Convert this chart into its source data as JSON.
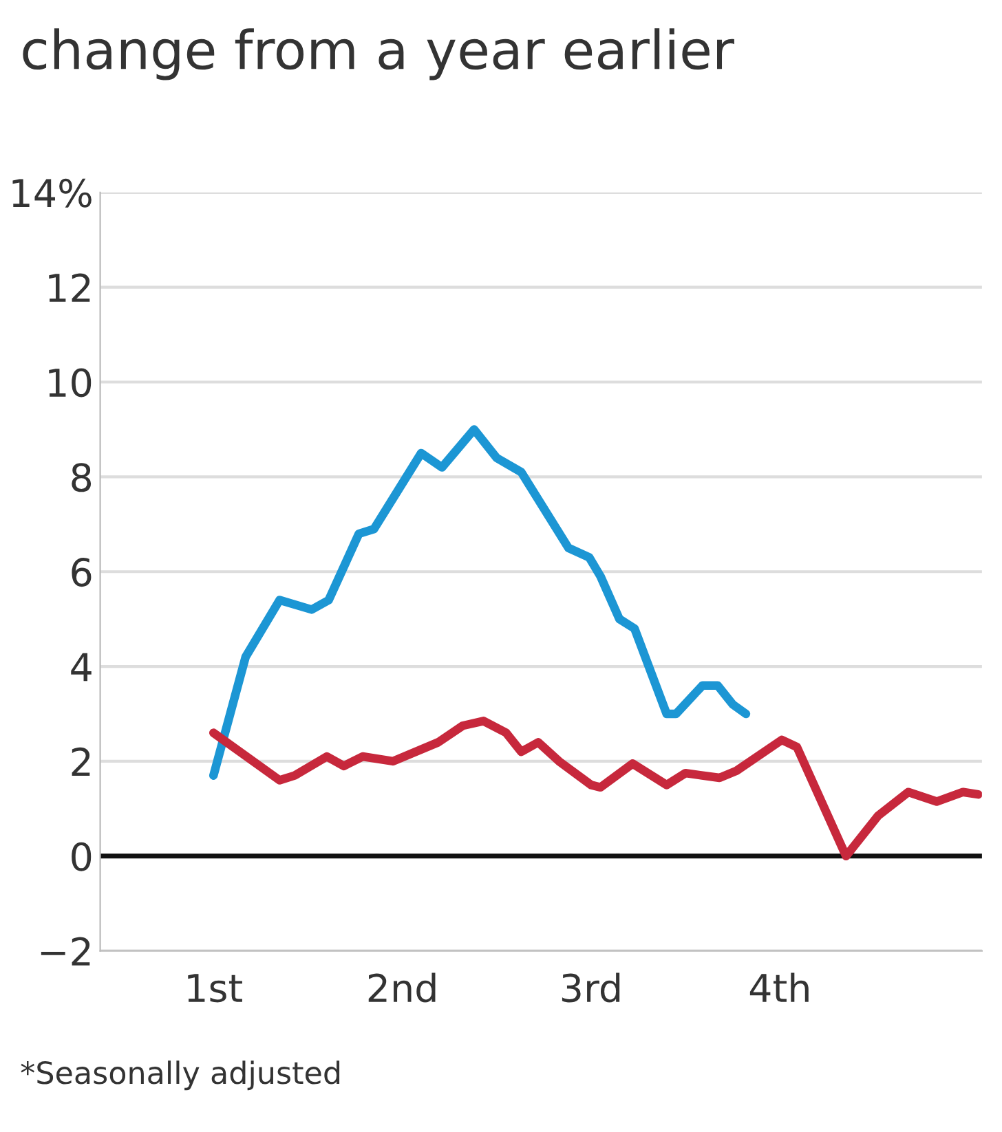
{
  "chart_data": {
    "type": "line",
    "title": "change from a year earlier",
    "series": [
      {
        "color": "#1c96d4",
        "x": [
          1,
          1.17,
          1.35,
          1.52,
          1.61,
          1.77,
          1.85,
          2.1,
          2.21,
          2.38,
          2.5,
          2.63,
          2.88,
          2.99,
          3.05,
          3.15,
          3.23,
          3.4,
          3.45,
          3.59,
          3.67,
          3.75,
          3.82
        ],
        "values": [
          1.7,
          4.2,
          5.4,
          5.2,
          5.4,
          6.8,
          6.9,
          8.5,
          8.2,
          9.0,
          8.4,
          8.1,
          6.5,
          6.3,
          5.9,
          5.0,
          4.8,
          3.0,
          3.0,
          3.6,
          3.6,
          3.2,
          3.0
        ]
      },
      {
        "color": "#c7283c",
        "x": [
          1,
          1.35,
          1.43,
          1.6,
          1.69,
          1.79,
          1.95,
          2.19,
          2.32,
          2.43,
          2.55,
          2.63,
          2.72,
          2.83,
          3,
          3.05,
          3.22,
          3.4,
          3.5,
          3.68,
          3.77,
          4.01,
          4.09,
          4.35,
          4.52,
          4.68,
          4.83,
          4.97,
          5.05
        ],
        "values": [
          2.6,
          1.6,
          1.7,
          2.1,
          1.9,
          2.1,
          2.0,
          2.4,
          2.75,
          2.85,
          2.6,
          2.2,
          2.4,
          2.0,
          1.5,
          1.45,
          1.95,
          1.5,
          1.75,
          1.65,
          1.8,
          2.45,
          2.3,
          0,
          0.85,
          1.35,
          1.15,
          1.35,
          1.3
        ]
      }
    ],
    "xlim": [
      0.4,
      5.07
    ],
    "xticks": [
      {
        "value": 1,
        "label": "1st"
      },
      {
        "value": 2,
        "label": "2nd"
      },
      {
        "value": 3,
        "label": "3rd"
      },
      {
        "value": 4,
        "label": "4th"
      }
    ],
    "ylim": [
      -2,
      14
    ],
    "yticks": [
      {
        "value": 14,
        "label": "14%"
      },
      12,
      10,
      8,
      6,
      4,
      2,
      0,
      {
        "value": -2,
        "label": "−2"
      }
    ],
    "grid": "y",
    "marker": "none",
    "line_style": "solid",
    "ref_lines": [
      {
        "axis": "y",
        "value": 0,
        "color": "#111111"
      }
    ],
    "annotations": [
      "*Seasonally adjusted"
    ]
  }
}
